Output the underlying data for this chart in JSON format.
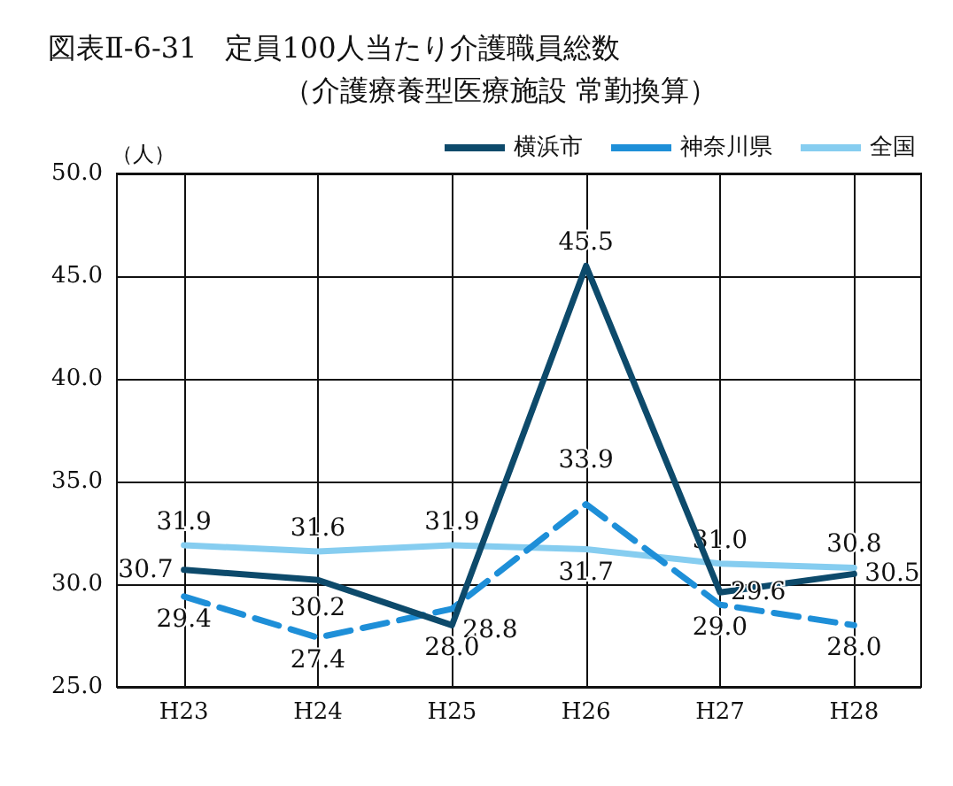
{
  "chart_data": {
    "type": "line",
    "title": "図表Ⅱ-6-31　定員100人当たり介護職員総数",
    "subtitle": "（介護療養型医療施設 常勤換算）",
    "ylabel": "（人）",
    "categories": [
      "H23",
      "H24",
      "H25",
      "H26",
      "H27",
      "H28"
    ],
    "series": [
      {
        "name": "横浜市",
        "color": "#0d4a6b",
        "line_style": "solid",
        "values": [
          30.7,
          30.2,
          28.0,
          45.5,
          29.6,
          30.5
        ],
        "value_labels": [
          "30.7",
          "30.2",
          "28.0",
          "45.5",
          "29.6",
          "30.5"
        ]
      },
      {
        "name": "神奈川県",
        "color": "#1e8fd8",
        "line_style": "dashed",
        "values": [
          29.4,
          27.4,
          28.8,
          33.9,
          29.0,
          28.0
        ],
        "value_labels": [
          "29.4",
          "27.4",
          "28.8",
          "33.9",
          "29.0",
          "28.0"
        ]
      },
      {
        "name": "全国",
        "color": "#86cdf0",
        "line_style": "solid",
        "values": [
          31.9,
          31.6,
          31.9,
          31.7,
          31.0,
          30.8
        ],
        "value_labels": [
          "31.9",
          "31.6",
          "31.9",
          "31.7",
          "31.0",
          "30.8"
        ]
      }
    ],
    "ylim": [
      25,
      50
    ],
    "yticks": [
      {
        "value": 25,
        "label": "25.0"
      },
      {
        "value": 30,
        "label": "30.0"
      },
      {
        "value": 35,
        "label": "35.0"
      },
      {
        "value": 40,
        "label": "40.0"
      },
      {
        "value": 45,
        "label": "45.0"
      },
      {
        "value": 50,
        "label": "50.0"
      }
    ],
    "grid": true,
    "legend": "top right",
    "marker": "none"
  }
}
